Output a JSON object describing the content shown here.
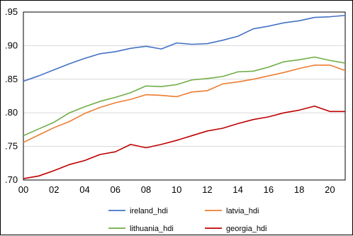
{
  "chart_data": {
    "type": "line",
    "title": "",
    "xlabel": "",
    "ylabel": "",
    "x": [
      2000,
      2001,
      2002,
      2003,
      2004,
      2005,
      2006,
      2007,
      2008,
      2009,
      2010,
      2011,
      2012,
      2013,
      2014,
      2015,
      2016,
      2017,
      2018,
      2019,
      2020,
      2021
    ],
    "xlim": [
      2000,
      2021
    ],
    "ylim": [
      0.7,
      0.95
    ],
    "x_ticks": [
      {
        "value": 2000,
        "label": "00"
      },
      {
        "value": 2002,
        "label": "02"
      },
      {
        "value": 2004,
        "label": "04"
      },
      {
        "value": 2006,
        "label": "06"
      },
      {
        "value": 2008,
        "label": "08"
      },
      {
        "value": 2010,
        "label": "10"
      },
      {
        "value": 2012,
        "label": "12"
      },
      {
        "value": 2014,
        "label": "14"
      },
      {
        "value": 2016,
        "label": "16"
      },
      {
        "value": 2018,
        "label": "18"
      },
      {
        "value": 2020,
        "label": "20"
      }
    ],
    "y_ticks": [
      {
        "value": 0.95,
        "label": ".95"
      },
      {
        "value": 0.9,
        "label": ".90"
      },
      {
        "value": 0.85,
        "label": ".85"
      },
      {
        "value": 0.8,
        "label": ".80"
      },
      {
        "value": 0.75,
        "label": ".75"
      },
      {
        "value": 0.7,
        "label": ".70"
      }
    ],
    "grid": "horizontal",
    "legend": "bottom",
    "series": [
      {
        "name": "ireland_hdi",
        "color": "#4472C4",
        "values": [
          0.847,
          0.855,
          0.864,
          0.873,
          0.881,
          0.888,
          0.891,
          0.896,
          0.899,
          0.895,
          0.904,
          0.902,
          0.903,
          0.908,
          0.914,
          0.925,
          0.929,
          0.934,
          0.937,
          0.942,
          0.943,
          0.945
        ]
      },
      {
        "name": "latvia_hdi",
        "color": "#ED7D31",
        "values": [
          0.756,
          0.767,
          0.778,
          0.787,
          0.799,
          0.808,
          0.815,
          0.82,
          0.827,
          0.826,
          0.824,
          0.831,
          0.833,
          0.843,
          0.846,
          0.85,
          0.855,
          0.86,
          0.866,
          0.871,
          0.871,
          0.863
        ]
      },
      {
        "name": "lithuania_hdi",
        "color": "#70AD47",
        "values": [
          0.766,
          0.776,
          0.786,
          0.8,
          0.809,
          0.817,
          0.823,
          0.83,
          0.84,
          0.839,
          0.842,
          0.849,
          0.851,
          0.854,
          0.861,
          0.862,
          0.868,
          0.876,
          0.879,
          0.883,
          0.878,
          0.874
        ]
      },
      {
        "name": "georgia_hdi",
        "color": "#C00000",
        "values": [
          0.702,
          0.706,
          0.714,
          0.723,
          0.729,
          0.738,
          0.742,
          0.753,
          0.748,
          0.753,
          0.759,
          0.766,
          0.773,
          0.777,
          0.784,
          0.79,
          0.794,
          0.8,
          0.804,
          0.81,
          0.802,
          0.802
        ]
      }
    ]
  }
}
